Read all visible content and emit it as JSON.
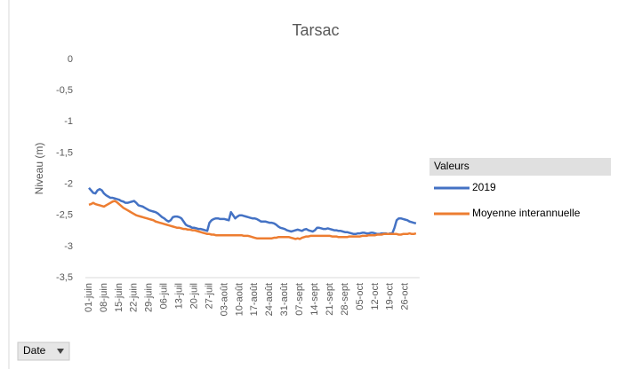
{
  "chart_data": {
    "type": "line",
    "title": "Tarsac",
    "y_label": "Niveau (m)",
    "legend_title": "Valeurs",
    "legend": "right",
    "field_button": "Date",
    "categories": [
      "01-juin",
      null,
      null,
      null,
      null,
      null,
      null,
      "08-juin",
      null,
      null,
      null,
      null,
      null,
      null,
      "15-juin",
      null,
      null,
      null,
      null,
      null,
      null,
      "22-juin",
      null,
      null,
      null,
      null,
      null,
      null,
      "29-juin",
      null,
      null,
      null,
      null,
      null,
      null,
      "06-juil",
      null,
      null,
      null,
      null,
      null,
      null,
      "13-juil",
      null,
      null,
      null,
      null,
      null,
      null,
      "20-juil",
      null,
      null,
      null,
      null,
      null,
      null,
      "27-juil",
      null,
      null,
      null,
      null,
      null,
      null,
      "03-août",
      null,
      null,
      null,
      null,
      null,
      null,
      "10-août",
      null,
      null,
      null,
      null,
      null,
      null,
      "17-août",
      null,
      null,
      null,
      null,
      null,
      null,
      "24-août",
      null,
      null,
      null,
      null,
      null,
      null,
      "31-août",
      null,
      null,
      null,
      null,
      null,
      null,
      "07-sept",
      null,
      null,
      null,
      null,
      null,
      null,
      "14-sept",
      null,
      null,
      null,
      null,
      null,
      null,
      "21-sept",
      null,
      null,
      null,
      null,
      null,
      null,
      "28-sept",
      null,
      null,
      null,
      null,
      null,
      null,
      "05-oct",
      null,
      null,
      null,
      null,
      null,
      null,
      "12-oct",
      null,
      null,
      null,
      null,
      null,
      null,
      "19-oct",
      null,
      null,
      null,
      null,
      null,
      null,
      "26-oct",
      null,
      null,
      null,
      null,
      null
    ],
    "series": [
      {
        "name": "2019",
        "color": "#4472c4",
        "values": [
          -2.06,
          -2.1,
          -2.14,
          -2.15,
          -2.1,
          -2.08,
          -2.1,
          -2.15,
          -2.18,
          -2.2,
          -2.22,
          -2.22,
          -2.23,
          -2.24,
          -2.25,
          -2.27,
          -2.28,
          -2.3,
          -2.3,
          -2.29,
          -2.28,
          -2.27,
          -2.3,
          -2.34,
          -2.35,
          -2.36,
          -2.38,
          -2.4,
          -2.42,
          -2.43,
          -2.44,
          -2.45,
          -2.47,
          -2.5,
          -2.53,
          -2.55,
          -2.58,
          -2.6,
          -2.58,
          -2.53,
          -2.52,
          -2.52,
          -2.53,
          -2.55,
          -2.6,
          -2.65,
          -2.67,
          -2.68,
          -2.7,
          -2.7,
          -2.71,
          -2.72,
          -2.72,
          -2.73,
          -2.74,
          -2.75,
          -2.62,
          -2.58,
          -2.56,
          -2.55,
          -2.55,
          -2.56,
          -2.56,
          -2.56,
          -2.57,
          -2.58,
          -2.45,
          -2.5,
          -2.55,
          -2.52,
          -2.5,
          -2.5,
          -2.51,
          -2.52,
          -2.53,
          -2.54,
          -2.55,
          -2.55,
          -2.56,
          -2.58,
          -2.6,
          -2.6,
          -2.6,
          -2.61,
          -2.62,
          -2.62,
          -2.63,
          -2.65,
          -2.68,
          -2.7,
          -2.71,
          -2.72,
          -2.74,
          -2.75,
          -2.76,
          -2.75,
          -2.74,
          -2.73,
          -2.74,
          -2.75,
          -2.73,
          -2.72,
          -2.74,
          -2.75,
          -2.76,
          -2.74,
          -2.7,
          -2.7,
          -2.71,
          -2.72,
          -2.72,
          -2.71,
          -2.72,
          -2.73,
          -2.74,
          -2.74,
          -2.75,
          -2.75,
          -2.76,
          -2.77,
          -2.77,
          -2.78,
          -2.79,
          -2.8,
          -2.8,
          -2.79,
          -2.79,
          -2.78,
          -2.78,
          -2.79,
          -2.79,
          -2.78,
          -2.78,
          -2.79,
          -2.8,
          -2.8,
          -2.79,
          -2.79,
          -2.79,
          -2.8,
          -2.79,
          -2.79,
          -2.7,
          -2.58,
          -2.55,
          -2.55,
          -2.56,
          -2.57,
          -2.58,
          -2.6,
          -2.61,
          -2.62,
          -2.63
        ]
      },
      {
        "name": "Moyenne interannuelle",
        "color": "#ed7d31",
        "values": [
          -2.33,
          -2.32,
          -2.3,
          -2.32,
          -2.33,
          -2.34,
          -2.35,
          -2.36,
          -2.34,
          -2.32,
          -2.3,
          -2.28,
          -2.27,
          -2.29,
          -2.32,
          -2.35,
          -2.38,
          -2.4,
          -2.42,
          -2.44,
          -2.46,
          -2.48,
          -2.5,
          -2.51,
          -2.52,
          -2.53,
          -2.54,
          -2.55,
          -2.56,
          -2.57,
          -2.58,
          -2.6,
          -2.61,
          -2.62,
          -2.63,
          -2.64,
          -2.65,
          -2.66,
          -2.67,
          -2.68,
          -2.69,
          -2.7,
          -2.7,
          -2.71,
          -2.72,
          -2.72,
          -2.73,
          -2.73,
          -2.74,
          -2.74,
          -2.75,
          -2.76,
          -2.77,
          -2.78,
          -2.79,
          -2.8,
          -2.8,
          -2.81,
          -2.81,
          -2.82,
          -2.82,
          -2.82,
          -2.82,
          -2.82,
          -2.82,
          -2.82,
          -2.82,
          -2.82,
          -2.82,
          -2.82,
          -2.82,
          -2.82,
          -2.83,
          -2.83,
          -2.83,
          -2.84,
          -2.85,
          -2.86,
          -2.87,
          -2.87,
          -2.87,
          -2.87,
          -2.87,
          -2.87,
          -2.87,
          -2.87,
          -2.86,
          -2.86,
          -2.85,
          -2.85,
          -2.85,
          -2.85,
          -2.85,
          -2.85,
          -2.86,
          -2.87,
          -2.88,
          -2.87,
          -2.88,
          -2.86,
          -2.85,
          -2.84,
          -2.84,
          -2.83,
          -2.83,
          -2.83,
          -2.83,
          -2.83,
          -2.83,
          -2.83,
          -2.83,
          -2.83,
          -2.83,
          -2.84,
          -2.84,
          -2.84,
          -2.85,
          -2.85,
          -2.85,
          -2.85,
          -2.85,
          -2.84,
          -2.84,
          -2.84,
          -2.84,
          -2.84,
          -2.84,
          -2.83,
          -2.83,
          -2.83,
          -2.82,
          -2.82,
          -2.82,
          -2.82,
          -2.81,
          -2.81,
          -2.81,
          -2.8,
          -2.8,
          -2.8,
          -2.8,
          -2.8,
          -2.8,
          -2.8,
          -2.81,
          -2.81,
          -2.8,
          -2.8,
          -2.8,
          -2.79,
          -2.8,
          -2.8,
          -2.79
        ]
      }
    ],
    "ylim": [
      -3.5,
      0
    ],
    "yticks": [
      0,
      {
        "value": -0.5,
        "label": "-0,5"
      },
      -1,
      {
        "value": -1.5,
        "label": "-1,5"
      },
      -2,
      {
        "value": -2.5,
        "label": "-2,5"
      },
      -3,
      {
        "value": -3.5,
        "label": "-3,5"
      }
    ]
  }
}
